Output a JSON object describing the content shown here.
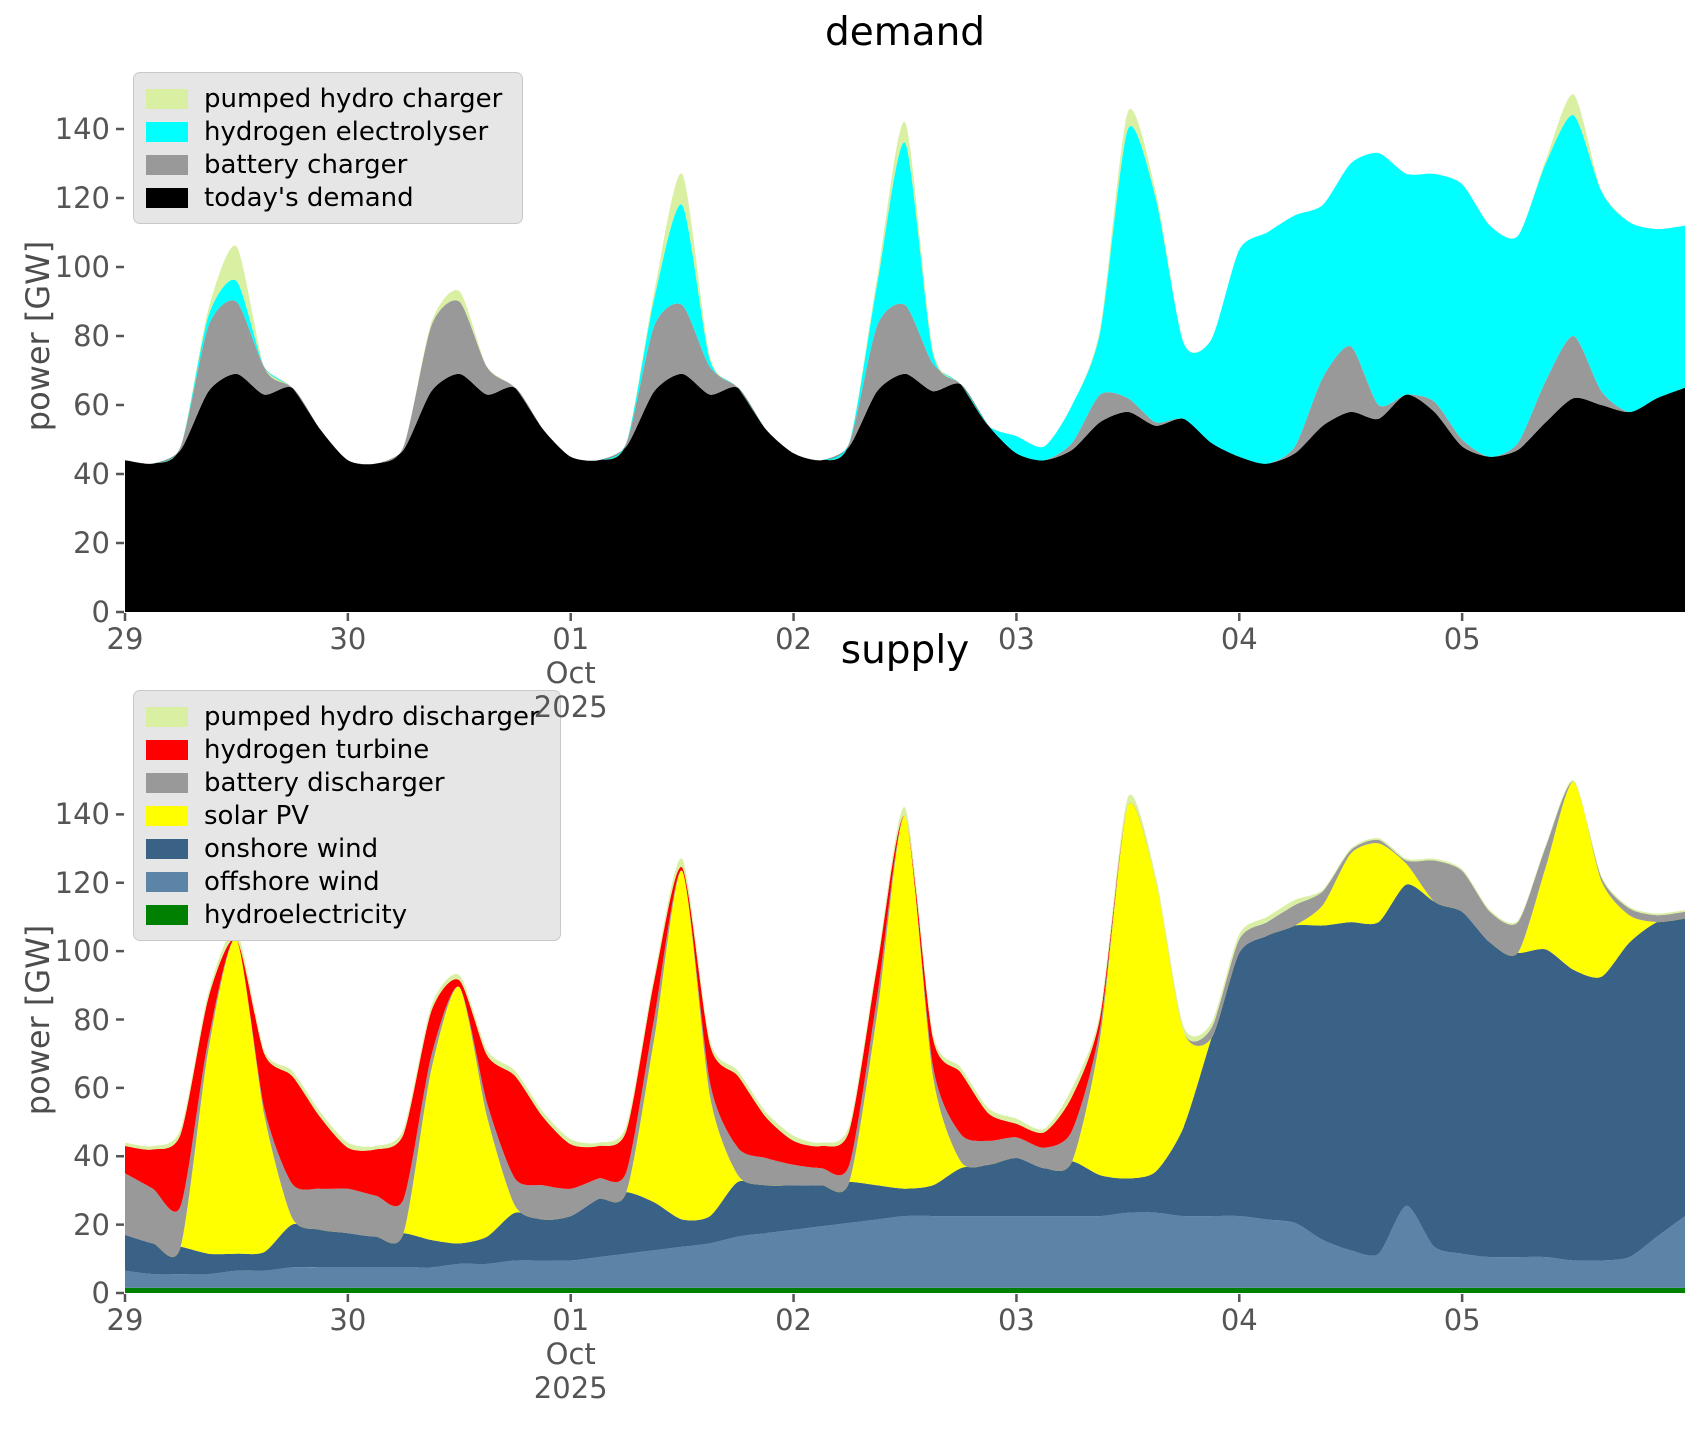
{
  "figure": {
    "background": "#ffffff"
  },
  "charts": [
    {
      "title": "demand",
      "ylabel": "power [GW]",
      "legend": [
        {
          "label": "pumped hydro charger",
          "color": "#d9f0a3"
        },
        {
          "label": "hydrogen electrolyser",
          "color": "#00ffff"
        },
        {
          "label": "battery charger",
          "color": "#999999"
        },
        {
          "label": "today's demand",
          "color": "#000000"
        }
      ],
      "chart_data": {
        "type": "area",
        "stack_order": "bottom-to-top",
        "x_unit": "hours since 2025-09-29 00:00",
        "x_hours": [
          0,
          3,
          6,
          9,
          12,
          15,
          18,
          21,
          24,
          27,
          30,
          33,
          36,
          39,
          42,
          45,
          48,
          51,
          54,
          57,
          60,
          63,
          66,
          69,
          72,
          75,
          78,
          81,
          84,
          87,
          90,
          93,
          96,
          99,
          102,
          105,
          108,
          111,
          114,
          117,
          120,
          123,
          126,
          129,
          132,
          135,
          138,
          141,
          144,
          147,
          150,
          153,
          156,
          159,
          162,
          165,
          168
        ],
        "x_tick_hours": [
          0,
          24,
          48,
          72,
          96,
          120,
          144
        ],
        "x_tick_labels": [
          "29",
          "30",
          "01",
          "02",
          "03",
          "04",
          "05"
        ],
        "x_sub_labels": [
          "Oct",
          "2025"
        ],
        "x_sub_label_index": 2,
        "y_ticks": [
          0,
          20,
          40,
          60,
          80,
          100,
          120,
          140
        ],
        "ylim": [
          0,
          160
        ],
        "grid": false,
        "legend_position": "upper-left",
        "series": [
          {
            "name": "today's demand",
            "color": "#000000",
            "values": [
              44,
              43,
              47,
              64,
              69,
              63,
              65,
              53,
              44,
              43,
              47,
              64,
              69,
              63,
              65,
              53,
              45,
              44,
              48,
              64,
              69,
              63,
              65,
              53,
              46,
              44,
              48,
              64,
              69,
              64,
              66,
              54,
              46,
              44,
              47,
              55,
              58,
              54,
              56,
              49,
              45,
              43,
              46,
              54,
              58,
              56,
              63,
              58,
              48,
              45,
              47,
              55,
              62,
              60,
              58,
              62,
              65
            ]
          },
          {
            "name": "battery charger",
            "color": "#999999",
            "values": [
              0,
              0,
              1,
              19,
              21,
              8,
              0,
              0,
              0,
              0,
              1,
              19,
              21,
              8,
              0,
              0,
              0,
              0,
              1,
              19,
              20,
              8,
              0,
              0,
              0,
              0,
              1,
              19,
              20,
              8,
              0,
              0,
              0,
              0,
              2,
              8,
              4,
              1,
              0,
              0,
              0,
              0,
              2,
              14,
              19,
              4,
              0,
              3,
              2,
              0,
              2,
              12,
              18,
              4,
              0,
              0,
              0
            ]
          },
          {
            "name": "hydrogen electrolyser",
            "color": "#00ffff",
            "values": [
              0,
              0,
              0,
              3,
              6,
              0,
              0,
              0,
              0,
              0,
              0,
              0,
              0,
              0,
              0,
              0,
              0,
              0,
              0,
              8,
              29,
              2,
              0,
              0,
              0,
              0,
              0,
              12,
              47,
              3,
              0,
              0,
              5,
              4,
              11,
              18,
              78,
              65,
              22,
              30,
              60,
              67,
              67,
              50,
              53,
              73,
              64,
              66,
              74,
              67,
              60,
              63,
              64,
              58,
              55,
              49,
              47
            ]
          },
          {
            "name": "pumped hydro charger",
            "color": "#d9f0a3",
            "values": [
              0,
              0,
              0,
              2,
              10,
              0,
              0,
              0,
              0,
              0,
              0,
              1,
              3,
              0,
              0,
              0,
              0,
              0,
              0,
              2,
              9,
              1,
              0,
              0,
              0,
              0,
              0,
              2,
              6,
              1,
              0,
              0,
              0,
              0,
              0,
              1,
              5,
              2,
              0,
              0,
              0,
              0,
              0,
              0,
              0,
              0,
              0,
              0,
              0,
              0,
              0,
              1,
              6,
              0,
              0,
              0,
              0
            ]
          }
        ]
      }
    },
    {
      "title": "supply",
      "ylabel": "power [GW]",
      "legend": [
        {
          "label": "pumped hydro discharger",
          "color": "#d9f0a3"
        },
        {
          "label": "hydrogen turbine",
          "color": "#ff0000"
        },
        {
          "label": "battery discharger",
          "color": "#999999"
        },
        {
          "label": "solar PV",
          "color": "#ffff00"
        },
        {
          "label": "onshore wind",
          "color": "#3a6186"
        },
        {
          "label": "offshore wind",
          "color": "#5b84a7"
        },
        {
          "label": "hydroelectricity",
          "color": "#008000"
        }
      ],
      "chart_data": {
        "type": "area",
        "stack_order": "bottom-to-top",
        "x_unit": "hours since 2025-09-29 00:00",
        "x_hours": [
          0,
          3,
          6,
          9,
          12,
          15,
          18,
          21,
          24,
          27,
          30,
          33,
          36,
          39,
          42,
          45,
          48,
          51,
          54,
          57,
          60,
          63,
          66,
          69,
          72,
          75,
          78,
          81,
          84,
          87,
          90,
          93,
          96,
          99,
          102,
          105,
          108,
          111,
          114,
          117,
          120,
          123,
          126,
          129,
          132,
          135,
          138,
          141,
          144,
          147,
          150,
          153,
          156,
          159,
          162,
          165,
          168
        ],
        "x_tick_hours": [
          0,
          24,
          48,
          72,
          96,
          120,
          144
        ],
        "x_tick_labels": [
          "29",
          "30",
          "01",
          "02",
          "03",
          "04",
          "05"
        ],
        "x_sub_labels": [
          "Oct",
          "2025"
        ],
        "x_sub_label_index": 2,
        "y_ticks": [
          0,
          20,
          40,
          60,
          80,
          100,
          120,
          140
        ],
        "ylim": [
          0,
          160
        ],
        "grid": false,
        "legend_position": "upper-left",
        "series": [
          {
            "name": "hydroelectricity",
            "color": "#008000",
            "values": [
              1.5,
              1.5,
              1.5,
              1.5,
              1.5,
              1.5,
              1.5,
              1.5,
              1.5,
              1.5,
              1.5,
              1.5,
              1.5,
              1.5,
              1.5,
              1.5,
              1.5,
              1.5,
              1.5,
              1.5,
              1.5,
              1.5,
              1.5,
              1.5,
              1.5,
              1.5,
              1.5,
              1.5,
              1.5,
              1.5,
              1.5,
              1.5,
              1.5,
              1.5,
              1.5,
              1.5,
              1.5,
              1.5,
              1.5,
              1.5,
              1.5,
              1.5,
              1.5,
              1.5,
              1.5,
              1.5,
              1.5,
              1.5,
              1.5,
              1.5,
              1.5,
              1.5,
              1.5,
              1.5,
              1.5,
              1.5,
              1.5
            ]
          },
          {
            "name": "offshore wind",
            "color": "#5b84a7",
            "values": [
              5,
              4,
              4,
              4,
              5,
              5,
              6,
              6,
              6,
              6,
              6,
              6,
              7,
              7,
              8,
              8,
              8,
              9,
              10,
              11,
              12,
              13,
              15,
              16,
              17,
              18,
              19,
              20,
              21,
              21,
              21,
              21,
              21,
              21,
              21,
              21,
              22,
              22,
              21,
              21,
              21,
              20,
              19,
              14,
              11,
              10,
              24,
              12,
              10,
              9,
              9,
              9,
              8,
              8,
              9,
              15,
              21
            ]
          },
          {
            "name": "onshore wind",
            "color": "#3a6186",
            "values": [
              10.5,
              9,
              8,
              6,
              5,
              5.5,
              12.5,
              11,
              10,
              9,
              10,
              8,
              6,
              8,
              14,
              12,
              13,
              17,
              18,
              14,
              8,
              8,
              16,
              14,
              13,
              12,
              12,
              10,
              8,
              9,
              14,
              15,
              17,
              14,
              16,
              12,
              10,
              12,
              26,
              52,
              77,
              83,
              87,
              92,
              96,
              97,
              94,
              101,
              100,
              92,
              89,
              90,
              85,
              83,
              92,
              92,
              87
            ]
          },
          {
            "name": "solar PV",
            "color": "#ffff00",
            "values": [
              0,
              0,
              0,
              60,
              92,
              40,
              2,
              0,
              0,
              0,
              0,
              50,
              75,
              35,
              2,
              0,
              0,
              0,
              0,
              48,
              102,
              35,
              2,
              0,
              0,
              0,
              0,
              50,
              109,
              32,
              2,
              0,
              0,
              0,
              0,
              40,
              109,
              85,
              28,
              0,
              0,
              0,
              0,
              6,
              20,
              23,
              6,
              0,
              0,
              0,
              0,
              24,
              55,
              28,
              8,
              0,
              0
            ]
          },
          {
            "name": "battery discharger",
            "color": "#999999",
            "values": [
              18,
              16,
              12,
              3,
              0,
              2,
              10,
              12,
              13,
              12,
              10,
              4,
              0,
              4,
              8,
              10,
              8,
              6,
              6,
              6,
              0,
              4,
              8,
              8,
              6,
              5,
              5,
              5,
              0,
              3,
              8,
              7,
              6,
              6,
              9,
              3,
              0,
              0,
              0,
              3,
              4,
              4,
              6,
              4,
              1,
              1,
              1,
              12,
              12,
              9,
              9,
              6,
              0,
              1,
              2,
              2,
              2
            ]
          },
          {
            "name": "hydrogen turbine",
            "color": "#ff0000",
            "values": [
              8,
              11.5,
              21,
              12,
              0,
              16,
              31.5,
              21,
              12,
              13.5,
              19,
              13,
              2,
              14,
              30,
              20,
              13,
              9.5,
              12,
              11,
              1,
              11,
              21,
              12,
              7,
              6.5,
              10,
              9,
              0,
              8,
              18,
              8,
              4,
              4.5,
              10,
              3,
              0,
              0,
              0,
              0,
              0,
              0,
              0,
              0,
              0,
              0,
              0,
              0,
              0,
              0,
              0,
              0,
              0,
              0,
              0,
              0,
              0
            ]
          },
          {
            "name": "pumped hydro discharger",
            "color": "#d9f0a3",
            "values": [
              1,
              1,
              1.5,
              1.5,
              2.5,
              1,
              1.5,
              1.5,
              1.5,
              1,
              1.5,
              1.5,
              1.5,
              1.5,
              1.5,
              1.5,
              1.5,
              1,
              1.5,
              1.5,
              2.5,
              1.5,
              1.5,
              1.5,
              1.5,
              1,
              1.5,
              1.5,
              2.5,
              1.5,
              1.5,
              1.5,
              1.5,
              1,
              2.5,
              1.5,
              2.5,
              1.5,
              1.5,
              1.5,
              1.5,
              1.5,
              1.5,
              0.5,
              0.5,
              0.5,
              0.5,
              0.5,
              0.5,
              0.5,
              0.5,
              0.5,
              0.5,
              0.5,
              0.5,
              0.5,
              0.5
            ]
          }
        ]
      }
    }
  ]
}
